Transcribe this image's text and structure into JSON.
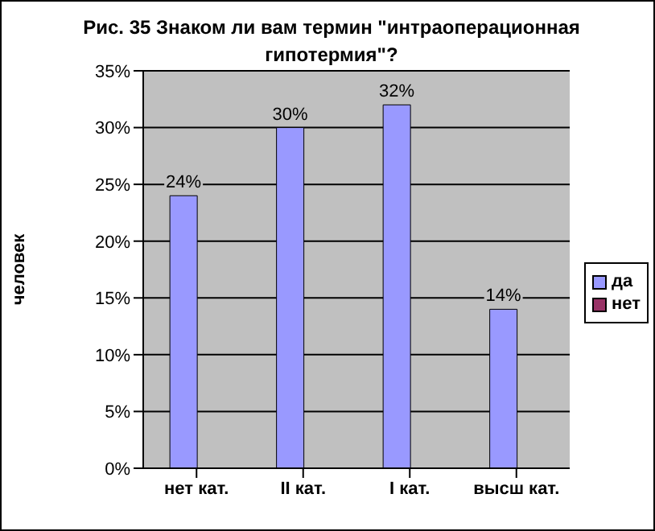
{
  "chart_data": {
    "type": "bar",
    "title": "Рис. 35 Знаком ли вам термин \"интраоперационная гипотермия\"?",
    "ylabel": "человек",
    "categories": [
      "нет кат.",
      "II кат.",
      "I кат.",
      "высш кат."
    ],
    "series": [
      {
        "name": "да",
        "color": "#9999ff",
        "values": [
          24,
          30,
          32,
          14
        ],
        "value_labels": [
          "24%",
          "30%",
          "32%",
          "14%"
        ]
      },
      {
        "name": "нет",
        "color": "#993366",
        "values": [
          null,
          null,
          null,
          null
        ]
      }
    ],
    "ylim": [
      0,
      35
    ],
    "yticks": [
      {
        "value": 0,
        "label": "0%"
      },
      {
        "value": 5,
        "label": "5%"
      },
      {
        "value": 10,
        "label": "10%"
      },
      {
        "value": 15,
        "label": "15%"
      },
      {
        "value": 20,
        "label": "20%"
      },
      {
        "value": 25,
        "label": "25%"
      },
      {
        "value": 30,
        "label": "30%"
      },
      {
        "value": 35,
        "label": "35%"
      }
    ],
    "grid": "y",
    "legend": "right"
  }
}
